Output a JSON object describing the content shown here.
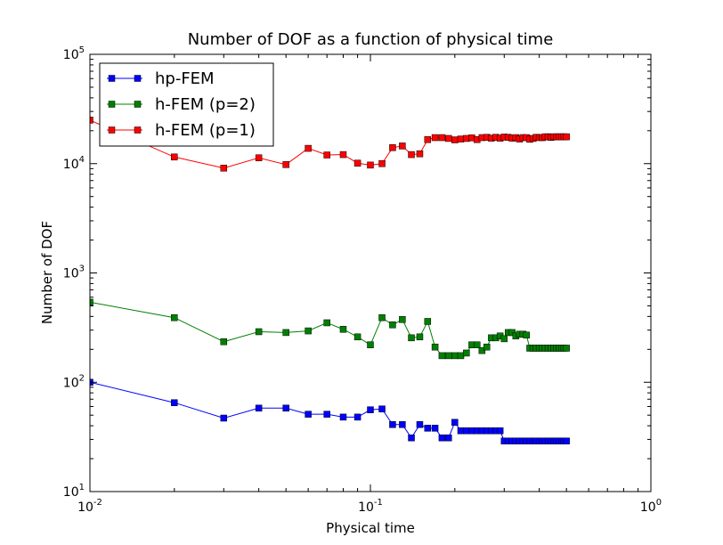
{
  "chart_data": {
    "type": "line",
    "title": "Number of DOF as a function of physical time",
    "xlabel": "Physical time",
    "ylabel": "Number of DOF",
    "xscale": "log",
    "yscale": "log",
    "xlim": [
      0.01,
      1
    ],
    "ylim": [
      10,
      100000
    ],
    "x_tick_labels": [
      {
        "base": "10",
        "exp": "-2"
      },
      {
        "base": "10",
        "exp": "-1"
      },
      {
        "base": "10",
        "exp": "0"
      }
    ],
    "y_tick_labels": [
      {
        "base": "10",
        "exp": "1"
      },
      {
        "base": "10",
        "exp": "2"
      },
      {
        "base": "10",
        "exp": "3"
      },
      {
        "base": "10",
        "exp": "4"
      },
      {
        "base": "10",
        "exp": "5"
      }
    ],
    "grid": false,
    "legend_position": "top-left",
    "marker": "square",
    "series": [
      {
        "name": "hp-FEM",
        "color": "#0000ff",
        "x": [
          0.01,
          0.02,
          0.03,
          0.04,
          0.05,
          0.06,
          0.07,
          0.08,
          0.09,
          0.1,
          0.11,
          0.12,
          0.13,
          0.14,
          0.15,
          0.16,
          0.17,
          0.18,
          0.19,
          0.2,
          0.21,
          0.22,
          0.23,
          0.24,
          0.25,
          0.26,
          0.27,
          0.28,
          0.29,
          0.3,
          0.31,
          0.32,
          0.33,
          0.34,
          0.35,
          0.36,
          0.37,
          0.38,
          0.39,
          0.4,
          0.41,
          0.42,
          0.43,
          0.44,
          0.45,
          0.46,
          0.47,
          0.48,
          0.49,
          0.5
        ],
        "y": [
          100,
          65,
          47,
          58,
          58,
          51,
          51,
          48,
          48,
          56,
          57,
          41,
          41,
          31,
          41,
          38,
          38,
          31,
          31,
          43,
          36,
          36,
          36,
          36,
          36,
          36,
          36,
          36,
          36,
          29,
          29,
          29,
          29,
          29,
          29,
          29,
          29,
          29,
          29,
          29,
          29,
          29,
          29,
          29,
          29,
          29,
          29,
          29,
          29,
          29
        ]
      },
      {
        "name": "h-FEM (p=2)",
        "color": "#008000",
        "x": [
          0.01,
          0.02,
          0.03,
          0.04,
          0.05,
          0.06,
          0.07,
          0.08,
          0.09,
          0.1,
          0.11,
          0.12,
          0.13,
          0.14,
          0.15,
          0.16,
          0.17,
          0.18,
          0.19,
          0.2,
          0.21,
          0.22,
          0.23,
          0.24,
          0.25,
          0.26,
          0.27,
          0.28,
          0.29,
          0.3,
          0.31,
          0.32,
          0.33,
          0.34,
          0.35,
          0.36,
          0.37,
          0.38,
          0.39,
          0.4,
          0.41,
          0.42,
          0.43,
          0.44,
          0.45,
          0.46,
          0.47,
          0.48,
          0.49,
          0.5
        ],
        "y": [
          540,
          390,
          235,
          290,
          285,
          295,
          350,
          305,
          260,
          220,
          390,
          335,
          375,
          255,
          260,
          360,
          210,
          175,
          175,
          175,
          175,
          185,
          220,
          220,
          195,
          210,
          255,
          255,
          265,
          250,
          285,
          285,
          265,
          275,
          275,
          270,
          205,
          205,
          205,
          205,
          205,
          205,
          205,
          205,
          205,
          205,
          205,
          205,
          205,
          205
        ]
      },
      {
        "name": "h-FEM (p=1)",
        "color": "#ff0000",
        "x": [
          0.01,
          0.02,
          0.03,
          0.04,
          0.05,
          0.06,
          0.07,
          0.08,
          0.09,
          0.1,
          0.11,
          0.12,
          0.13,
          0.14,
          0.15,
          0.16,
          0.17,
          0.18,
          0.19,
          0.2,
          0.21,
          0.22,
          0.23,
          0.24,
          0.25,
          0.26,
          0.27,
          0.28,
          0.29,
          0.3,
          0.31,
          0.32,
          0.33,
          0.34,
          0.35,
          0.36,
          0.37,
          0.38,
          0.39,
          0.4,
          0.41,
          0.42,
          0.43,
          0.44,
          0.45,
          0.46,
          0.47,
          0.48,
          0.49,
          0.5
        ],
        "y": [
          25000,
          11500,
          9100,
          11300,
          9800,
          13800,
          12000,
          12100,
          10100,
          9700,
          10000,
          14000,
          14500,
          12100,
          12300,
          16600,
          17300,
          17300,
          17000,
          16500,
          16800,
          17000,
          17200,
          16600,
          17300,
          17400,
          17100,
          17400,
          17100,
          17500,
          17400,
          17100,
          17300,
          16800,
          17300,
          17300,
          16700,
          17000,
          17400,
          17300,
          17300,
          17600,
          17600,
          17400,
          17600,
          17600,
          17600,
          17600,
          17600,
          17600
        ]
      }
    ]
  }
}
